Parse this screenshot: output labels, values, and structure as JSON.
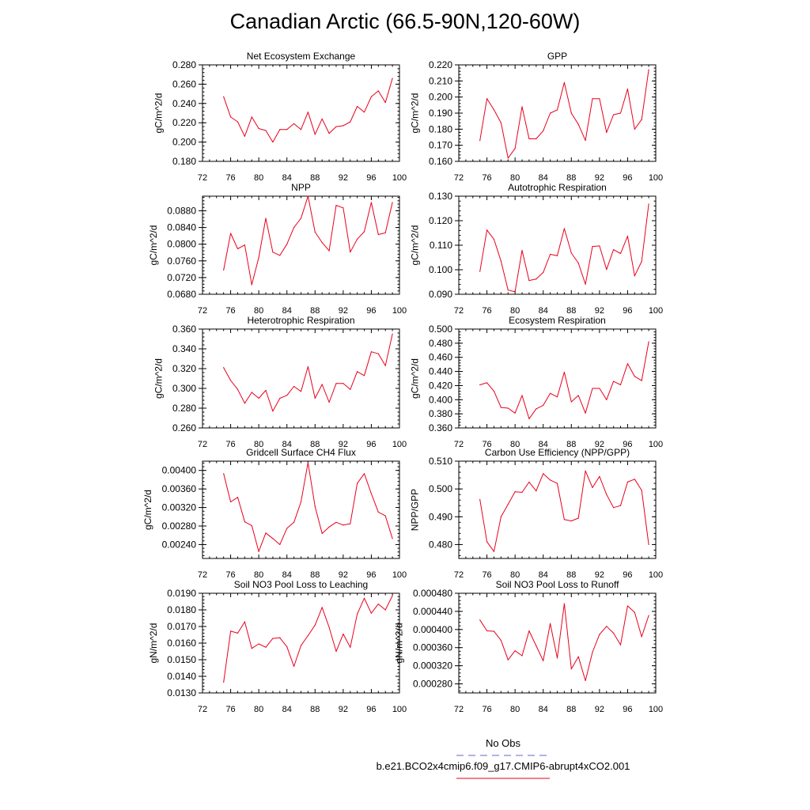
{
  "title": "Canadian Arctic (66.5-90N,120-60W)",
  "legend": {
    "entries": [
      {
        "label": "No Obs",
        "color": "#6666cc",
        "style": "dashed"
      },
      {
        "label": "b.e21.BCO2x4cmip6.f09_g17.CMIP6-abrupt4xCO2.001",
        "color": "#e8001c",
        "style": "solid"
      }
    ]
  },
  "chart_data": [
    {
      "type": "line",
      "title": "Net Ecosystem Exchange",
      "ylabel": "gC/m^2/d",
      "xlim": [
        72,
        100
      ],
      "xticks": [
        "72",
        "76",
        "80",
        "84",
        "88",
        "92",
        "96",
        "100"
      ],
      "ylim": [
        0.18,
        0.28
      ],
      "yticks": [
        "0.180",
        "0.200",
        "0.220",
        "0.240",
        "0.260",
        "0.280"
      ],
      "x": [
        75,
        76,
        77,
        78,
        79,
        80,
        81,
        82,
        83,
        84,
        85,
        86,
        87,
        88,
        89,
        90,
        91,
        92,
        93,
        94,
        95,
        96,
        97,
        98,
        99
      ],
      "series": [
        {
          "values": [
            0.247,
            0.226,
            0.221,
            0.206,
            0.226,
            0.214,
            0.212,
            0.2,
            0.213,
            0.213,
            0.219,
            0.213,
            0.231,
            0.208,
            0.224,
            0.209,
            0.216,
            0.217,
            0.221,
            0.237,
            0.231,
            0.247,
            0.253,
            0.241,
            0.266
          ],
          "color": "#e8001c"
        }
      ]
    },
    {
      "type": "line",
      "title": "GPP",
      "ylabel": "gC/m^2/d",
      "xlim": [
        72,
        100
      ],
      "xticks": [
        "72",
        "76",
        "80",
        "84",
        "88",
        "92",
        "96",
        "100"
      ],
      "ylim": [
        0.16,
        0.22
      ],
      "yticks": [
        "0.160",
        "0.170",
        "0.180",
        "0.190",
        "0.200",
        "0.210",
        "0.220"
      ],
      "x": [
        75,
        76,
        77,
        78,
        79,
        80,
        81,
        82,
        83,
        84,
        85,
        86,
        87,
        88,
        89,
        90,
        91,
        92,
        93,
        94,
        95,
        96,
        97,
        98,
        99
      ],
      "series": [
        {
          "values": [
            0.173,
            0.199,
            0.192,
            0.184,
            0.162,
            0.168,
            0.194,
            0.174,
            0.174,
            0.179,
            0.19,
            0.192,
            0.209,
            0.19,
            0.183,
            0.173,
            0.199,
            0.199,
            0.178,
            0.189,
            0.19,
            0.205,
            0.18,
            0.186,
            0.217
          ],
          "color": "#e8001c"
        }
      ]
    },
    {
      "type": "line",
      "title": "NPP",
      "ylabel": "gC/m^2/d",
      "xlim": [
        72,
        100
      ],
      "xticks": [
        "72",
        "76",
        "80",
        "84",
        "88",
        "92",
        "96",
        "100"
      ],
      "ylim": [
        0.068,
        0.0915
      ],
      "yticks": [
        "0.0680",
        "0.0720",
        "0.0760",
        "0.0800",
        "0.0840",
        "0.0880"
      ],
      "x": [
        75,
        76,
        77,
        78,
        79,
        80,
        81,
        82,
        83,
        84,
        85,
        86,
        87,
        88,
        89,
        90,
        91,
        92,
        93,
        94,
        95,
        96,
        97,
        98,
        99
      ],
      "series": [
        {
          "values": [
            0.0738,
            0.0826,
            0.0789,
            0.0798,
            0.0703,
            0.0768,
            0.0862,
            0.0781,
            0.0773,
            0.08,
            0.084,
            0.0862,
            0.0915,
            0.0829,
            0.0804,
            0.0784,
            0.0893,
            0.0887,
            0.0781,
            0.0812,
            0.083,
            0.09,
            0.0823,
            0.0827,
            0.09
          ],
          "color": "#e8001c"
        }
      ]
    },
    {
      "type": "line",
      "title": "Autotrophic Respiration",
      "ylabel": "gC/m^2/d",
      "xlim": [
        72,
        100
      ],
      "xticks": [
        "72",
        "76",
        "80",
        "84",
        "88",
        "92",
        "96",
        "100"
      ],
      "ylim": [
        0.09,
        0.13
      ],
      "yticks": [
        "0.090",
        "0.100",
        "0.110",
        "0.120",
        "0.130"
      ],
      "x": [
        75,
        76,
        77,
        78,
        79,
        80,
        81,
        82,
        83,
        84,
        85,
        86,
        87,
        88,
        89,
        90,
        91,
        92,
        93,
        94,
        95,
        96,
        97,
        98,
        99
      ],
      "series": [
        {
          "values": [
            0.0993,
            0.1162,
            0.1124,
            0.1035,
            0.0917,
            0.091,
            0.1079,
            0.0956,
            0.0962,
            0.0989,
            0.1063,
            0.1057,
            0.1168,
            0.1068,
            0.1027,
            0.0941,
            0.1095,
            0.1097,
            0.1001,
            0.1082,
            0.1066,
            0.1137,
            0.0975,
            0.1034,
            0.1268
          ],
          "color": "#e8001c"
        }
      ]
    },
    {
      "type": "line",
      "title": "Heterotrophic Respiration",
      "ylabel": "gC/m^2/d",
      "xlim": [
        72,
        100
      ],
      "xticks": [
        "72",
        "76",
        "80",
        "84",
        "88",
        "92",
        "96",
        "100"
      ],
      "ylim": [
        0.26,
        0.36
      ],
      "yticks": [
        "0.260",
        "0.280",
        "0.300",
        "0.320",
        "0.340",
        "0.360"
      ],
      "x": [
        75,
        76,
        77,
        78,
        79,
        80,
        81,
        82,
        83,
        84,
        85,
        86,
        87,
        88,
        89,
        90,
        91,
        92,
        93,
        94,
        95,
        96,
        97,
        98,
        99
      ],
      "series": [
        {
          "values": [
            0.321,
            0.308,
            0.299,
            0.285,
            0.296,
            0.29,
            0.298,
            0.277,
            0.29,
            0.293,
            0.302,
            0.297,
            0.322,
            0.29,
            0.304,
            0.286,
            0.305,
            0.305,
            0.299,
            0.317,
            0.313,
            0.337,
            0.335,
            0.323,
            0.355
          ],
          "color": "#e8001c"
        }
      ]
    },
    {
      "type": "line",
      "title": "Ecosystem Respiration",
      "ylabel": "gC/m^2/d",
      "xlim": [
        72,
        100
      ],
      "xticks": [
        "72",
        "76",
        "80",
        "84",
        "88",
        "92",
        "96",
        "100"
      ],
      "ylim": [
        0.36,
        0.5
      ],
      "yticks": [
        "0.360",
        "0.380",
        "0.400",
        "0.420",
        "0.440",
        "0.460",
        "0.480",
        "0.500"
      ],
      "x": [
        75,
        76,
        77,
        78,
        79,
        80,
        81,
        82,
        83,
        84,
        85,
        86,
        87,
        88,
        89,
        90,
        91,
        92,
        93,
        94,
        95,
        96,
        97,
        98,
        99
      ],
      "series": [
        {
          "values": [
            0.421,
            0.424,
            0.412,
            0.389,
            0.388,
            0.381,
            0.406,
            0.373,
            0.387,
            0.392,
            0.409,
            0.404,
            0.439,
            0.397,
            0.406,
            0.381,
            0.416,
            0.416,
            0.4,
            0.426,
            0.421,
            0.451,
            0.433,
            0.427,
            0.482
          ],
          "color": "#e8001c"
        }
      ]
    },
    {
      "type": "line",
      "title": "Gridcell Surface CH4 Flux",
      "ylabel": "gC/m^2/d",
      "xlim": [
        72,
        100
      ],
      "xticks": [
        "72",
        "76",
        "80",
        "84",
        "88",
        "92",
        "96",
        "100"
      ],
      "ylim": [
        0.0021,
        0.0042
      ],
      "yticks": [
        "0.00240",
        "0.00280",
        "0.00320",
        "0.00360",
        "0.00400"
      ],
      "x": [
        75,
        76,
        77,
        78,
        79,
        80,
        81,
        82,
        83,
        84,
        85,
        86,
        87,
        88,
        89,
        90,
        91,
        92,
        93,
        94,
        95,
        96,
        97,
        98,
        99
      ],
      "series": [
        {
          "values": [
            0.00393,
            0.00332,
            0.00342,
            0.00289,
            0.00281,
            0.00225,
            0.00265,
            0.00253,
            0.0024,
            0.00275,
            0.00288,
            0.00332,
            0.00417,
            0.00322,
            0.00264,
            0.00278,
            0.00288,
            0.00282,
            0.00285,
            0.00372,
            0.00393,
            0.0035,
            0.0031,
            0.00302,
            0.00253
          ],
          "color": "#e8001c"
        }
      ]
    },
    {
      "type": "line",
      "title": "Carbon Use Efficiency (NPP/GPP)",
      "ylabel": "NPP/GPP",
      "xlim": [
        72,
        100
      ],
      "xticks": [
        "72",
        "76",
        "80",
        "84",
        "88",
        "92",
        "96",
        "100"
      ],
      "ylim": [
        0.475,
        0.51
      ],
      "yticks": [
        "0.480",
        "0.490",
        "0.500",
        "0.510"
      ],
      "x": [
        75,
        76,
        77,
        78,
        79,
        80,
        81,
        82,
        83,
        84,
        85,
        86,
        87,
        88,
        89,
        90,
        91,
        92,
        93,
        94,
        95,
        96,
        97,
        98,
        99
      ],
      "series": [
        {
          "values": [
            0.4962,
            0.481,
            0.4775,
            0.49,
            0.4945,
            0.499,
            0.4988,
            0.5025,
            0.4993,
            0.5055,
            0.5032,
            0.502,
            0.489,
            0.4885,
            0.4895,
            0.5065,
            0.5005,
            0.5045,
            0.498,
            0.4933,
            0.494,
            0.5025,
            0.5035,
            0.4995,
            0.48
          ],
          "color": "#e8001c"
        }
      ]
    },
    {
      "type": "line",
      "title": "Soil NO3 Pool Loss to Leaching",
      "ylabel": "gN/m^2/d",
      "xlim": [
        72,
        100
      ],
      "xticks": [
        "72",
        "76",
        "80",
        "84",
        "88",
        "92",
        "96",
        "100"
      ],
      "ylim": [
        0.013,
        0.019
      ],
      "yticks": [
        "0.0130",
        "0.0140",
        "0.0150",
        "0.0160",
        "0.0170",
        "0.0180",
        "0.0190"
      ],
      "x": [
        75,
        76,
        77,
        78,
        79,
        80,
        81,
        82,
        83,
        84,
        85,
        86,
        87,
        88,
        89,
        90,
        91,
        92,
        93,
        94,
        95,
        96,
        97,
        98,
        99
      ],
      "series": [
        {
          "values": [
            0.01365,
            0.01672,
            0.0166,
            0.01728,
            0.01568,
            0.01595,
            0.01575,
            0.01628,
            0.01632,
            0.01578,
            0.0146,
            0.01585,
            0.01645,
            0.01708,
            0.01815,
            0.01695,
            0.0155,
            0.01655,
            0.01575,
            0.01775,
            0.0187,
            0.0178,
            0.01835,
            0.018,
            0.01885
          ],
          "color": "#e8001c"
        }
      ]
    },
    {
      "type": "line",
      "title": "Soil NO3 Pool Loss to Runoff",
      "ylabel": "gN/m^2/d",
      "xlim": [
        72,
        100
      ],
      "xticks": [
        "72",
        "76",
        "80",
        "84",
        "88",
        "92",
        "96",
        "100"
      ],
      "ylim": [
        0.00026,
        0.00048
      ],
      "yticks": [
        "0.000280",
        "0.000320",
        "0.000360",
        "0.000400",
        "0.000440",
        "0.000480"
      ],
      "x": [
        75,
        76,
        77,
        78,
        79,
        80,
        81,
        82,
        83,
        84,
        85,
        86,
        87,
        88,
        89,
        90,
        91,
        92,
        93,
        94,
        95,
        96,
        97,
        98,
        99
      ],
      "series": [
        {
          "values": [
            0.000421,
            0.000397,
            0.000396,
            0.000376,
            0.000333,
            0.000353,
            0.000342,
            0.000397,
            0.000364,
            0.000331,
            0.000413,
            0.000337,
            0.000457,
            0.000313,
            0.00034,
            0.000287,
            0.00035,
            0.000389,
            0.000407,
            0.000392,
            0.000366,
            0.000452,
            0.000438,
            0.000384,
            0.000431
          ],
          "color": "#e8001c"
        }
      ]
    }
  ]
}
